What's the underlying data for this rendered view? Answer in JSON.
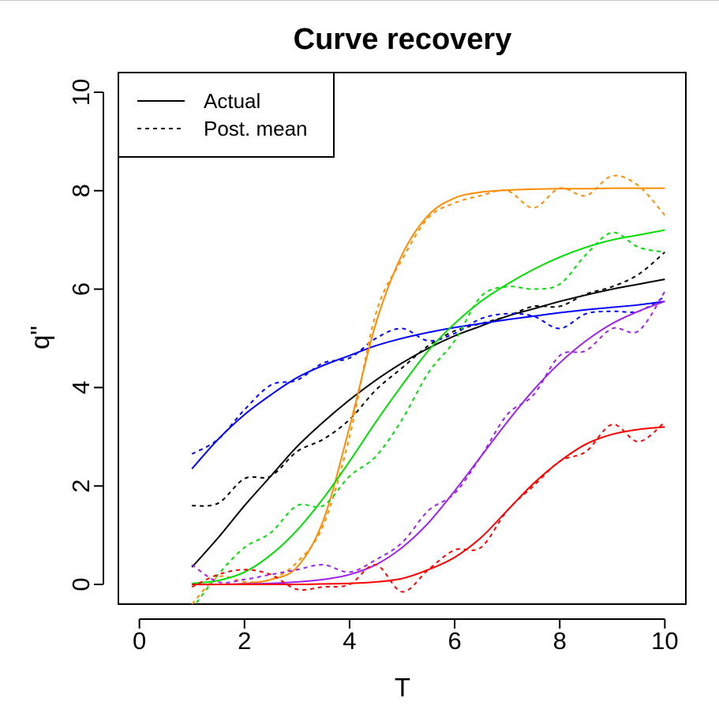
{
  "chart_data": {
    "type": "line",
    "title": "Curve recovery",
    "xlabel": "T",
    "ylabel": "q\"",
    "xlim": [
      -0.4,
      10.4
    ],
    "ylim": [
      -0.4,
      10.4
    ],
    "xticks": [
      "0",
      "2",
      "4",
      "6",
      "8",
      "10"
    ],
    "yticks": [
      "0",
      "2",
      "4",
      "6",
      "8",
      "10"
    ],
    "grid": false,
    "legend": {
      "position": "top-left",
      "entries": [
        {
          "label": "Actual",
          "style": "solid"
        },
        {
          "label": "Post. mean",
          "style": "dotted"
        }
      ]
    },
    "x": [
      1,
      1.5,
      2,
      2.5,
      3,
      3.5,
      4,
      4.5,
      5,
      5.5,
      6,
      6.5,
      7,
      7.5,
      8,
      8.5,
      9,
      9.5,
      10
    ],
    "series": [
      {
        "color": "#000000",
        "style": "solid",
        "values": [
          0.35,
          0.95,
          1.6,
          2.2,
          2.8,
          3.3,
          3.75,
          4.15,
          4.5,
          4.8,
          5.05,
          5.25,
          5.45,
          5.6,
          5.75,
          5.88,
          6.0,
          6.1,
          6.2
        ]
      },
      {
        "color": "#000000",
        "style": "dotted",
        "values": [
          1.6,
          1.65,
          2.15,
          2.2,
          2.7,
          2.95,
          3.35,
          3.95,
          4.4,
          4.85,
          5.15,
          5.3,
          5.45,
          5.65,
          5.65,
          5.9,
          6.05,
          6.3,
          6.75
        ]
      },
      {
        "color": "#0000ff",
        "style": "solid",
        "values": [
          2.35,
          2.95,
          3.45,
          3.85,
          4.2,
          4.45,
          4.65,
          4.85,
          5.0,
          5.12,
          5.22,
          5.3,
          5.38,
          5.45,
          5.52,
          5.58,
          5.63,
          5.68,
          5.75
        ]
      },
      {
        "color": "#0000ff",
        "style": "dotted",
        "values": [
          2.65,
          2.95,
          3.55,
          4.05,
          4.15,
          4.5,
          4.6,
          5.0,
          5.2,
          4.95,
          5.1,
          5.4,
          5.5,
          5.45,
          5.2,
          5.5,
          5.55,
          5.55,
          5.85
        ]
      },
      {
        "color": "#ff8c00",
        "style": "solid",
        "values": [
          0.0,
          0.0,
          0.02,
          0.1,
          0.35,
          1.3,
          3.2,
          5.3,
          6.7,
          7.5,
          7.85,
          7.97,
          8.01,
          8.03,
          8.04,
          8.04,
          8.05,
          8.05,
          8.05
        ]
      },
      {
        "color": "#ff8c00",
        "style": "dotted",
        "values": [
          -0.4,
          0.15,
          0.05,
          0.1,
          0.45,
          1.2,
          3.0,
          5.5,
          6.6,
          7.45,
          7.75,
          7.9,
          8.0,
          7.65,
          8.05,
          7.9,
          8.3,
          8.1,
          7.5
        ]
      },
      {
        "color": "#00e000",
        "style": "solid",
        "values": [
          0.02,
          0.08,
          0.25,
          0.6,
          1.1,
          1.75,
          2.5,
          3.3,
          4.05,
          4.75,
          5.3,
          5.75,
          6.1,
          6.4,
          6.65,
          6.85,
          7.0,
          7.1,
          7.2
        ]
      },
      {
        "color": "#00e000",
        "style": "dotted",
        "values": [
          -0.5,
          0.2,
          0.75,
          1.05,
          1.6,
          1.6,
          2.2,
          2.6,
          3.35,
          4.3,
          4.95,
          5.85,
          6.05,
          6.0,
          6.1,
          6.7,
          7.15,
          6.85,
          6.75
        ]
      },
      {
        "color": "#a020f0",
        "style": "solid",
        "values": [
          0.0,
          0.0,
          0.01,
          0.02,
          0.05,
          0.1,
          0.2,
          0.4,
          0.75,
          1.25,
          1.9,
          2.6,
          3.3,
          3.95,
          4.5,
          4.95,
          5.3,
          5.55,
          5.75
        ]
      },
      {
        "color": "#a020f0",
        "style": "dotted",
        "values": [
          0.4,
          0.05,
          0.1,
          0.2,
          0.3,
          0.4,
          0.25,
          0.5,
          0.85,
          1.5,
          1.85,
          2.6,
          3.45,
          3.85,
          4.65,
          4.75,
          5.2,
          5.15,
          5.95
        ]
      },
      {
        "color": "#ff0000",
        "style": "solid",
        "values": [
          0.0,
          0.0,
          0.0,
          0.0,
          0.0,
          0.01,
          0.02,
          0.05,
          0.12,
          0.3,
          0.55,
          0.95,
          1.5,
          2.05,
          2.5,
          2.85,
          3.05,
          3.15,
          3.2
        ]
      },
      {
        "color": "#ff0000",
        "style": "dotted",
        "values": [
          -0.05,
          0.2,
          0.3,
          0.2,
          -0.1,
          -0.05,
          0.0,
          0.4,
          -0.15,
          0.3,
          0.7,
          0.75,
          1.5,
          2.0,
          2.5,
          2.7,
          3.25,
          2.9,
          3.3
        ]
      }
    ]
  }
}
